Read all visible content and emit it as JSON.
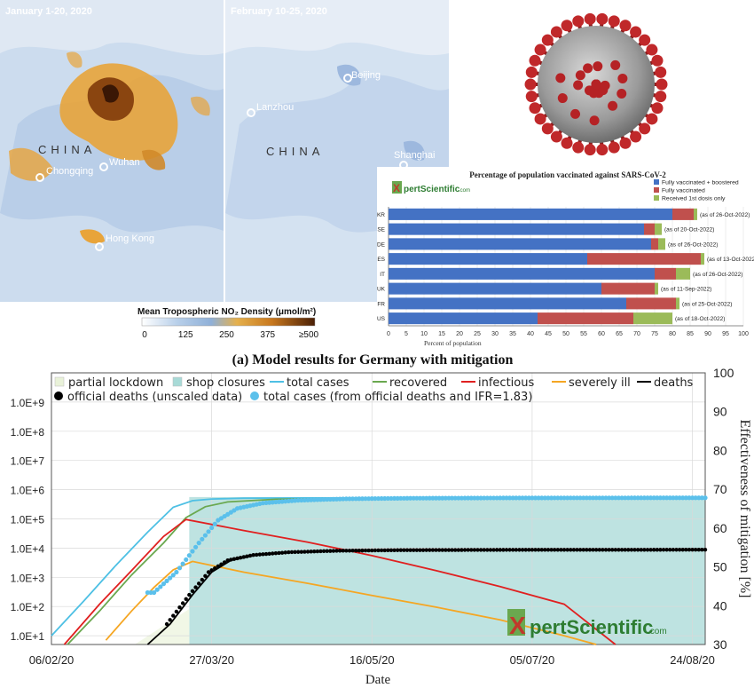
{
  "maps": {
    "left_title": "January 1-20, 2020",
    "right_title": "February 10-25, 2020",
    "country_label": "CHINA",
    "left_cities": [
      "Chongqing",
      "Wuhan",
      "Hong Kong"
    ],
    "right_cities": [
      "Beijing",
      "Lanzhou",
      "Shanghai"
    ],
    "colorbar_title": "Mean Tropospheric NO₂ Density (μmol/m²)",
    "colorbar_ticks": [
      "0",
      "125",
      "250",
      "375",
      "≥500"
    ]
  },
  "brand": {
    "prefix": "X",
    "text": "pertScientific",
    "suffix": ".com"
  },
  "chart_data": [
    {
      "type": "bar",
      "orientation": "horizontal",
      "stacked": true,
      "title": "Percentage of population vaccinated against SARS-CoV-2",
      "xlabel": "Percent of population",
      "xlim": [
        0,
        100
      ],
      "xticks": [
        "0",
        "5",
        "10",
        "15",
        "20",
        "25",
        "30",
        "35",
        "40",
        "45",
        "50",
        "55",
        "60",
        "65",
        "70",
        "75",
        "80",
        "85",
        "90",
        "95",
        "100"
      ],
      "categories": [
        "KR",
        "SE",
        "DE",
        "ES",
        "IT",
        "UK",
        "FR",
        "US"
      ],
      "notes": [
        "(as of 26-Oct-2022)",
        "(as of 20-Oct-2022)",
        "(as of 26-Oct-2022)",
        "(as of 13-Oct-2022)",
        "(as of 26-Oct-2022)",
        "(as of 11-Sep-2022)",
        "(as of 25-Oct-2022)",
        "(as of 18-Oct-2022)"
      ],
      "series": [
        {
          "name": "Fully vaccinated + boostered",
          "color": "#4472c4",
          "values": [
            80,
            72,
            74,
            56,
            75,
            60,
            67,
            42
          ]
        },
        {
          "name": "Fully vaccinated",
          "color": "#c0504d",
          "values": [
            6,
            3,
            2,
            32,
            6,
            15,
            14,
            27
          ]
        },
        {
          "name": "Received 1st dosis only",
          "color": "#9bbb59",
          "values": [
            1,
            2,
            2,
            1,
            4,
            1,
            1,
            11
          ]
        }
      ]
    },
    {
      "type": "line",
      "title": "(a) Model results for Germany with mitigation",
      "xlabel": "Date",
      "ylabel_right": "Effectiveness of mitigation [%]",
      "yscale": "log",
      "ylim": [
        5,
        10000000000
      ],
      "yticks": [
        "1.0E+1",
        "1.0E+2",
        "1.0E+3",
        "1.0E+4",
        "1.0E+5",
        "1.0E+6",
        "1.0E+7",
        "1.0E+8",
        "1.0E+9"
      ],
      "y2lim": [
        30,
        100
      ],
      "y2ticks": [
        "30",
        "40",
        "50",
        "60",
        "70",
        "80",
        "90",
        "100"
      ],
      "x_range_days": [
        0,
        204
      ],
      "xticks": [
        "06/02/20",
        "27/03/20",
        "16/05/20",
        "05/07/20",
        "24/08/20"
      ],
      "xtick_days": [
        0,
        50,
        100,
        150,
        200
      ],
      "legend": [
        {
          "name": "partial lockdown",
          "color": "#e9f2d9",
          "kind": "box"
        },
        {
          "name": "shop closures",
          "color": "#a8dad7",
          "kind": "box"
        },
        {
          "name": "total cases",
          "color": "#4ec0e4",
          "kind": "line"
        },
        {
          "name": "recovered",
          "color": "#6aa84f",
          "kind": "line"
        },
        {
          "name": "infectious",
          "color": "#e02020",
          "kind": "line"
        },
        {
          "name": "severely ill",
          "color": "#f5a623",
          "kind": "line"
        },
        {
          "name": "deaths",
          "color": "#000000",
          "kind": "line"
        },
        {
          "name": "official deaths (unscaled data)",
          "color": "#000000",
          "kind": "dot"
        },
        {
          "name": "total cases (from official deaths and IFR=1.83)",
          "color": "#5bc0eb",
          "kind": "dot"
        }
      ],
      "mitigation": {
        "partial_lockdown_days": [
          36,
          43
        ],
        "shop_closures_days": [
          43,
          204
        ],
        "partial_level": 30,
        "closure_level": 68
      },
      "series": [
        {
          "name": "total cases",
          "x": [
            0,
            10,
            20,
            30,
            38,
            44,
            50,
            60,
            80,
            204
          ],
          "y": [
            10,
            150,
            2500,
            35000,
            250000,
            420000,
            480000,
            510000,
            520000,
            525000
          ]
        },
        {
          "name": "recovered",
          "x": [
            5,
            15,
            25,
            35,
            42,
            48,
            55,
            70,
            100,
            204
          ],
          "y": [
            5,
            70,
            1200,
            15000,
            110000,
            260000,
            380000,
            470000,
            510000,
            520000
          ]
        },
        {
          "name": "infectious",
          "x": [
            4,
            15,
            25,
            35,
            42,
            60,
            80,
            100,
            120,
            140,
            160,
            176
          ],
          "y": [
            5,
            120,
            1700,
            25000,
            95000,
            40000,
            16000,
            5500,
            1700,
            480,
            120,
            5
          ]
        },
        {
          "name": "severely ill",
          "x": [
            17,
            25,
            32,
            38,
            44,
            60,
            80,
            100,
            120,
            140,
            160,
            170
          ],
          "y": [
            7,
            70,
            450,
            1800,
            3500,
            1500,
            620,
            240,
            95,
            35,
            10,
            5
          ]
        },
        {
          "name": "deaths",
          "x": [
            30,
            37,
            44,
            50,
            56,
            64,
            75,
            90,
            110,
            140,
            204
          ],
          "y": [
            5,
            25,
            250,
            1500,
            3800,
            5800,
            7200,
            8100,
            8500,
            8700,
            8800
          ]
        }
      ],
      "scatter": [
        {
          "name": "official deaths (unscaled data)",
          "x_start": 36,
          "x_end": 204,
          "model": "deaths"
        },
        {
          "name": "total cases (from official deaths and IFR=1.83)",
          "x_start": 30,
          "x_end": 204,
          "model": "total cases scaled"
        }
      ]
    }
  ]
}
